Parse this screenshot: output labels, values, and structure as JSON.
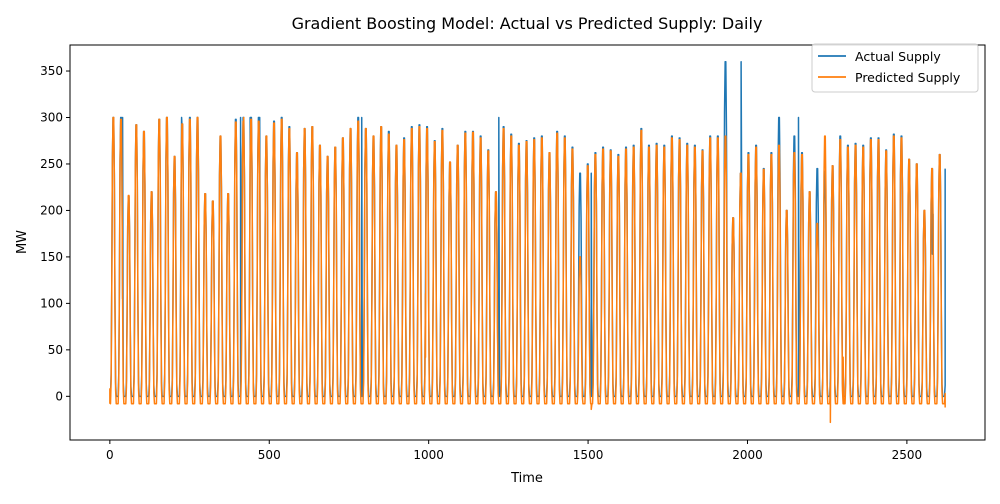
{
  "chart_data": {
    "type": "line",
    "title": "Gradient Boosting Model: Actual vs Predicted Supply: Daily",
    "xlabel": "Time",
    "ylabel": "MW",
    "xlim": [
      -125,
      2745
    ],
    "ylim": [
      -47,
      378
    ],
    "x_ticks": [
      0,
      500,
      1000,
      1500,
      2000,
      2500
    ],
    "y_ticks": [
      0,
      50,
      100,
      150,
      200,
      250,
      300,
      350
    ],
    "grid": false,
    "legend_position": "top-right",
    "period": 24,
    "x_max": 2620,
    "series": [
      {
        "name": "Actual Supply",
        "color": "#1f77b4",
        "baseline": 0,
        "daily_peaks": [
          300,
          300,
          215,
          292,
          285,
          220,
          298,
          300,
          258,
          293,
          300,
          300,
          218,
          210,
          280,
          218,
          298,
          300,
          300,
          300,
          280,
          296,
          300,
          290,
          262,
          288,
          290,
          270,
          258,
          268,
          278,
          288,
          300,
          288,
          280,
          290,
          285,
          270,
          278,
          290,
          292,
          290,
          275,
          288,
          252,
          270,
          285,
          285,
          280,
          265,
          220,
          290,
          282,
          272,
          275,
          278,
          280,
          262,
          285,
          280,
          268,
          240,
          250,
          262,
          268,
          265,
          260,
          268,
          270,
          288,
          270,
          272,
          270,
          280,
          278,
          272,
          270,
          265,
          280,
          280,
          360,
          192,
          240,
          262,
          270,
          245,
          262,
          300,
          200,
          280,
          262,
          220,
          245,
          242,
          248,
          280,
          270,
          272,
          270,
          278,
          278,
          265,
          282,
          280,
          255,
          250,
          200,
          245,
          260,
          150,
          245
        ],
        "sample_points": [
          [
            0,
            0
          ],
          [
            12,
            300
          ],
          [
            40,
            300
          ],
          [
            225,
            300
          ],
          [
            410,
            300
          ],
          [
            440,
            300
          ],
          [
            470,
            300
          ],
          [
            790,
            300
          ],
          [
            1220,
            300
          ],
          [
            1510,
            240
          ],
          [
            1980,
            360
          ],
          [
            2160,
            300
          ],
          [
            2580,
            153
          ],
          [
            2620,
            245
          ]
        ]
      },
      {
        "name": "Predicted Supply",
        "color": "#ff7f0e",
        "baseline": -8,
        "daily_peaks": [
          300,
          298,
          216,
          292,
          285,
          220,
          298,
          300,
          258,
          293,
          298,
          300,
          218,
          210,
          280,
          218,
          295,
          296,
          298,
          296,
          280,
          294,
          298,
          288,
          262,
          288,
          290,
          270,
          258,
          268,
          278,
          288,
          296,
          288,
          280,
          290,
          282,
          270,
          276,
          288,
          290,
          288,
          274,
          286,
          252,
          270,
          283,
          284,
          278,
          264,
          220,
          288,
          280,
          270,
          274,
          276,
          278,
          262,
          283,
          278,
          266,
          150,
          248,
          260,
          266,
          264,
          258,
          266,
          268,
          286,
          268,
          270,
          268,
          278,
          276,
          270,
          268,
          264,
          278,
          278,
          280,
          192,
          240,
          260,
          268,
          244,
          260,
          270,
          200,
          262,
          260,
          220,
          186,
          280,
          248,
          276,
          268,
          270,
          268,
          276,
          276,
          264,
          280,
          278,
          255,
          250,
          200,
          245,
          260,
          130,
          245
        ],
        "sample_points": [
          [
            0,
            8
          ],
          [
            420,
            300
          ],
          [
            990,
            42
          ],
          [
            1510,
            -14
          ],
          [
            2260,
            -28
          ],
          [
            2300,
            42
          ],
          [
            2620,
            -12
          ]
        ]
      }
    ]
  }
}
